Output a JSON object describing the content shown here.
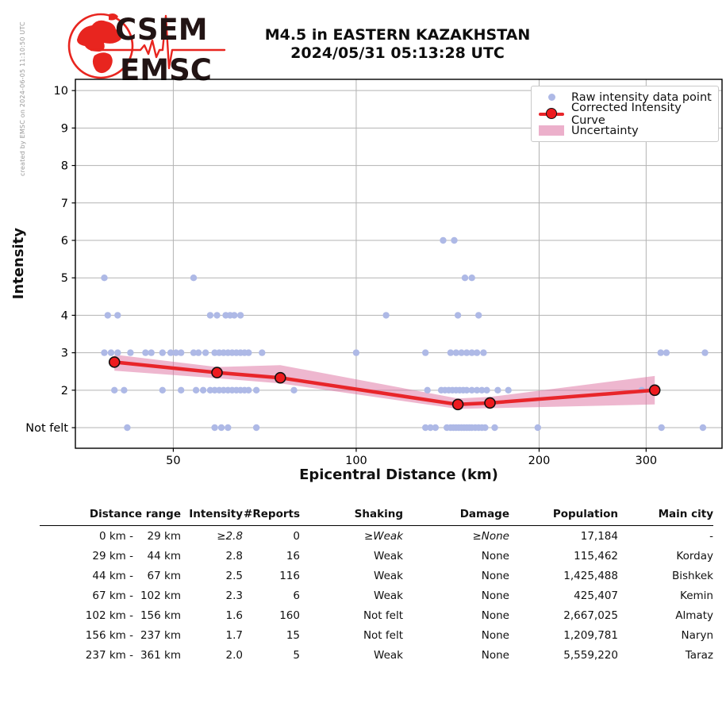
{
  "watermark": "created by EMSC on 2024-06-05 11:10:50 UTC",
  "logo": {
    "top_text": "CSEM",
    "bottom_text": "EMSC"
  },
  "header": {
    "title_line1": "M4.5 in EASTERN KAZAKHSTAN",
    "title_line2": "2024/05/31 05:13:28 UTC"
  },
  "chart_data": {
    "type": "line",
    "title": "M4.5 in EASTERN KAZAKHSTAN 2024/05/31 05:13:28 UTC",
    "xlabel": "Epicentral Distance (km)",
    "ylabel": "Intensity",
    "x_scale": "log",
    "xlim": [
      34.5,
      400
    ],
    "ylim": [
      0.45,
      10.3
    ],
    "grid": true,
    "legend_position": "upper right",
    "x_ticks": [
      {
        "v": 50,
        "label": "50"
      },
      {
        "v": 100,
        "label": "100"
      },
      {
        "v": 200,
        "label": "200"
      },
      {
        "v": 300,
        "label": "300"
      }
    ],
    "y_ticks": [
      {
        "v": 10,
        "label": "10"
      },
      {
        "v": 9,
        "label": "9"
      },
      {
        "v": 8,
        "label": "8"
      },
      {
        "v": 7,
        "label": "7"
      },
      {
        "v": 6,
        "label": "6"
      },
      {
        "v": 5,
        "label": "5"
      },
      {
        "v": 4,
        "label": "4"
      },
      {
        "v": 3,
        "label": "3"
      },
      {
        "v": 2,
        "label": "2"
      },
      {
        "v": 1,
        "label": "Not felt"
      }
    ],
    "legend": [
      {
        "label": "Raw intensity data point",
        "marker": "dot"
      },
      {
        "label": "Corrected Intensity Curve",
        "marker": "line-marker"
      },
      {
        "label": "Uncertainty",
        "marker": "patch"
      }
    ],
    "raw_points_by_intensity": {
      "1": [
        42,
        58.5,
        60,
        61.5,
        68.5,
        130,
        132.5,
        135,
        141,
        143,
        144.5,
        146,
        147.5,
        149,
        150.5,
        152,
        153.5,
        155,
        157,
        159,
        161,
        163,
        169,
        199,
        318,
        372
      ],
      "2": [
        40,
        41.5,
        48,
        51.5,
        54.5,
        56,
        57.5,
        58.5,
        59.5,
        60.5,
        61.5,
        62.5,
        63.5,
        64.5,
        65.5,
        66.5,
        68.5,
        79,
        131,
        138,
        140,
        142,
        144,
        146,
        148,
        150,
        152,
        155,
        158,
        161,
        164,
        171,
        178,
        295
      ],
      "3": [
        38.5,
        39.5,
        40.5,
        42.5,
        45,
        46,
        48,
        49.5,
        50.5,
        51.5,
        54,
        55,
        56.5,
        58.5,
        59.5,
        60.5,
        61.5,
        62.5,
        63.5,
        64.5,
        65.5,
        66.5,
        70,
        100,
        130,
        143,
        146,
        149,
        152,
        155,
        158,
        162,
        317,
        324,
        375
      ],
      "4": [
        39,
        40.5,
        57.5,
        59,
        61,
        62,
        63,
        64.5,
        112,
        147,
        159
      ],
      "5": [
        38.5,
        54,
        151,
        155
      ],
      "6": [
        139,
        145
      ]
    },
    "corrected_curve": {
      "x": [
        40,
        59,
        75,
        147,
        166,
        310
      ],
      "y": [
        2.75,
        2.47,
        2.33,
        1.62,
        1.66,
        2.0
      ]
    },
    "uncertainty_band": {
      "x": [
        40,
        59,
        75,
        147,
        166,
        310
      ],
      "upper": [
        2.95,
        2.62,
        2.67,
        1.78,
        1.82,
        2.38
      ],
      "lower": [
        2.52,
        2.32,
        2.18,
        1.5,
        1.52,
        1.62
      ]
    },
    "colors": {
      "raw_point": "#aeb9e6",
      "curve": "#e8252a",
      "marker_fill": "#ee1b1f",
      "marker_edge": "#111111",
      "band": "#dd6fa0",
      "grid": "#b3b3b3"
    }
  },
  "table": {
    "headers": [
      "Distance range",
      "Intensity",
      "#Reports",
      "Shaking",
      "Damage",
      "Population",
      "Main city"
    ],
    "rows": [
      {
        "range_from": "0 km -",
        "range_to": "29 km",
        "intensity": "≥2.8",
        "reports": "0",
        "shaking": "≥Weak",
        "damage": "≥None",
        "population": "17,184",
        "main_city": "-",
        "estimated": true
      },
      {
        "range_from": "29 km -",
        "range_to": "44 km",
        "intensity": "2.8",
        "reports": "16",
        "shaking": "Weak",
        "damage": "None",
        "population": "115,462",
        "main_city": "Korday",
        "estimated": false
      },
      {
        "range_from": "44 km -",
        "range_to": "67 km",
        "intensity": "2.5",
        "reports": "116",
        "shaking": "Weak",
        "damage": "None",
        "population": "1,425,488",
        "main_city": "Bishkek",
        "estimated": false
      },
      {
        "range_from": "67 km -",
        "range_to": "102 km",
        "intensity": "2.3",
        "reports": "6",
        "shaking": "Weak",
        "damage": "None",
        "population": "425,407",
        "main_city": "Kemin",
        "estimated": false
      },
      {
        "range_from": "102 km -",
        "range_to": "156 km",
        "intensity": "1.6",
        "reports": "160",
        "shaking": "Not felt",
        "damage": "None",
        "population": "2,667,025",
        "main_city": "Almaty",
        "estimated": false
      },
      {
        "range_from": "156 km -",
        "range_to": "237 km",
        "intensity": "1.7",
        "reports": "15",
        "shaking": "Not felt",
        "damage": "None",
        "population": "1,209,781",
        "main_city": "Naryn",
        "estimated": false
      },
      {
        "range_from": "237 km -",
        "range_to": "361 km",
        "intensity": "2.0",
        "reports": "5",
        "shaking": "Weak",
        "damage": "None",
        "population": "5,559,220",
        "main_city": "Taraz",
        "estimated": false
      }
    ]
  }
}
